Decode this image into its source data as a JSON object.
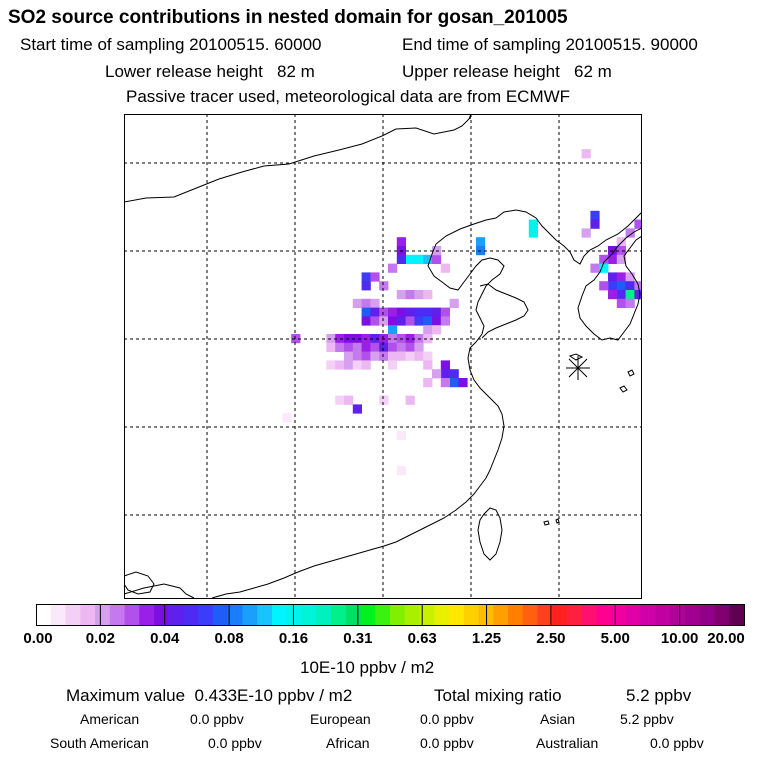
{
  "header": {
    "title": "SO2 source contributions in nested domain for gosan_201005",
    "start_time": "Start time of sampling 20100515. 60000",
    "end_time": "End time of sampling 20100515. 90000",
    "lower_release": "Lower release height   82 m",
    "upper_release": "Upper release height   62 m",
    "tracer_note": "Passive tracer used, meteorological data are from ECMWF"
  },
  "chart_data": {
    "type": "heatmap",
    "title": "SO2 source contributions in nested domain for gosan_201005",
    "colorbar": {
      "ticks": [
        "0.00",
        "0.02",
        "0.04",
        "0.08",
        "0.16",
        "0.31",
        "0.63",
        "1.25",
        "2.50",
        "5.00",
        "10.00",
        "20.00"
      ],
      "unit_label": "10E-10 ppbv / m2",
      "colors": [
        "#ffffff",
        "#fbe8fb",
        "#f4cff6",
        "#edb8f2",
        "#d79ff0",
        "#c47aee",
        "#b250ec",
        "#9a20e8",
        "#7c10e4",
        "#6020ec",
        "#4f2af4",
        "#3c3cfb",
        "#1f5dfb",
        "#1a7dfb",
        "#1aa0fb",
        "#18c4fb",
        "#00f4ff",
        "#00f4ec",
        "#00f4d8",
        "#00f0c0",
        "#00f08a",
        "#00e066",
        "#00f020",
        "#3cf010",
        "#80f000",
        "#a8f000",
        "#c8f000",
        "#e8f000",
        "#ffe800",
        "#ffd000",
        "#ffbc00",
        "#ffa000",
        "#ff8000",
        "#ff6010",
        "#ff4020",
        "#ff2020",
        "#ff2040",
        "#ff1070",
        "#ff0090",
        "#f000a0",
        "#e000a8",
        "#d000a8",
        "#c000a0",
        "#b00098",
        "#a00090",
        "#900088",
        "#800070",
        "#600050"
      ]
    },
    "map": {
      "projection": "lat-lon",
      "grid_lines": "dashed",
      "receptor": "gosan"
    },
    "cells": [
      {
        "col": 52,
        "row": 4,
        "level": 3
      },
      {
        "col": 46,
        "row": 12,
        "level": 17
      },
      {
        "col": 46,
        "row": 13,
        "level": 17
      },
      {
        "col": 53,
        "row": 11,
        "level": 11
      },
      {
        "col": 53,
        "row": 12,
        "level": 9
      },
      {
        "col": 52,
        "row": 13,
        "level": 4
      },
      {
        "col": 40,
        "row": 14,
        "level": 14
      },
      {
        "col": 40,
        "row": 15,
        "level": 13
      },
      {
        "col": 31,
        "row": 14,
        "level": 7
      },
      {
        "col": 31,
        "row": 15,
        "level": 8
      },
      {
        "col": 32,
        "row": 16,
        "level": 16
      },
      {
        "col": 33,
        "row": 16,
        "level": 16
      },
      {
        "col": 34,
        "row": 16,
        "level": 15
      },
      {
        "col": 31,
        "row": 16,
        "level": 10
      },
      {
        "col": 35,
        "row": 16,
        "level": 6
      },
      {
        "col": 35,
        "row": 15,
        "level": 4
      },
      {
        "col": 30,
        "row": 17,
        "level": 5
      },
      {
        "col": 36,
        "row": 17,
        "level": 3
      },
      {
        "col": 27,
        "row": 18,
        "level": 11
      },
      {
        "col": 27,
        "row": 19,
        "level": 10
      },
      {
        "col": 28,
        "row": 18,
        "level": 6
      },
      {
        "col": 29,
        "row": 19,
        "level": 5
      },
      {
        "col": 31,
        "row": 20,
        "level": 4
      },
      {
        "col": 32,
        "row": 20,
        "level": 5
      },
      {
        "col": 33,
        "row": 20,
        "level": 4
      },
      {
        "col": 34,
        "row": 20,
        "level": 3
      },
      {
        "col": 26,
        "row": 21,
        "level": 4
      },
      {
        "col": 27,
        "row": 21,
        "level": 5
      },
      {
        "col": 28,
        "row": 21,
        "level": 4
      },
      {
        "col": 27,
        "row": 22,
        "level": 12
      },
      {
        "col": 28,
        "row": 22,
        "level": 9
      },
      {
        "col": 29,
        "row": 22,
        "level": 6
      },
      {
        "col": 30,
        "row": 22,
        "level": 7
      },
      {
        "col": 31,
        "row": 22,
        "level": 8
      },
      {
        "col": 32,
        "row": 22,
        "level": 9
      },
      {
        "col": 33,
        "row": 22,
        "level": 10
      },
      {
        "col": 34,
        "row": 22,
        "level": 10
      },
      {
        "col": 35,
        "row": 22,
        "level": 9
      },
      {
        "col": 36,
        "row": 22,
        "level": 6
      },
      {
        "col": 37,
        "row": 21,
        "level": 4
      },
      {
        "col": 27,
        "row": 23,
        "level": 8
      },
      {
        "col": 28,
        "row": 23,
        "level": 6
      },
      {
        "col": 29,
        "row": 23,
        "level": 4
      },
      {
        "col": 30,
        "row": 23,
        "level": 8
      },
      {
        "col": 31,
        "row": 23,
        "level": 9
      },
      {
        "col": 32,
        "row": 23,
        "level": 6
      },
      {
        "col": 33,
        "row": 23,
        "level": 11
      },
      {
        "col": 34,
        "row": 23,
        "level": 12
      },
      {
        "col": 35,
        "row": 23,
        "level": 8
      },
      {
        "col": 36,
        "row": 23,
        "level": 5
      },
      {
        "col": 34,
        "row": 24,
        "level": 4
      },
      {
        "col": 35,
        "row": 24,
        "level": 3
      },
      {
        "col": 30,
        "row": 24,
        "level": 14
      },
      {
        "col": 34,
        "row": 25,
        "level": 3
      },
      {
        "col": 19,
        "row": 25,
        "level": 6
      },
      {
        "col": 23,
        "row": 25,
        "level": 4
      },
      {
        "col": 24,
        "row": 25,
        "level": 7
      },
      {
        "col": 25,
        "row": 25,
        "level": 8
      },
      {
        "col": 26,
        "row": 25,
        "level": 8
      },
      {
        "col": 27,
        "row": 25,
        "level": 7
      },
      {
        "col": 28,
        "row": 25,
        "level": 9
      },
      {
        "col": 29,
        "row": 25,
        "level": 7
      },
      {
        "col": 30,
        "row": 25,
        "level": 5
      },
      {
        "col": 31,
        "row": 25,
        "level": 6
      },
      {
        "col": 32,
        "row": 25,
        "level": 7
      },
      {
        "col": 33,
        "row": 25,
        "level": 5
      },
      {
        "col": 34,
        "row": 25,
        "level": 3
      },
      {
        "col": 23,
        "row": 26,
        "level": 3
      },
      {
        "col": 24,
        "row": 26,
        "level": 5
      },
      {
        "col": 25,
        "row": 26,
        "level": 6
      },
      {
        "col": 26,
        "row": 26,
        "level": 5
      },
      {
        "col": 27,
        "row": 26,
        "level": 7
      },
      {
        "col": 28,
        "row": 26,
        "level": 6
      },
      {
        "col": 29,
        "row": 26,
        "level": 9
      },
      {
        "col": 30,
        "row": 26,
        "level": 6
      },
      {
        "col": 31,
        "row": 26,
        "level": 5
      },
      {
        "col": 32,
        "row": 26,
        "level": 6
      },
      {
        "col": 33,
        "row": 26,
        "level": 4
      },
      {
        "col": 25,
        "row": 27,
        "level": 4
      },
      {
        "col": 26,
        "row": 27,
        "level": 5
      },
      {
        "col": 27,
        "row": 27,
        "level": 6
      },
      {
        "col": 28,
        "row": 27,
        "level": 4
      },
      {
        "col": 29,
        "row": 27,
        "level": 5
      },
      {
        "col": 30,
        "row": 27,
        "level": 3
      },
      {
        "col": 31,
        "row": 27,
        "level": 3
      },
      {
        "col": 32,
        "row": 27,
        "level": 2
      },
      {
        "col": 33,
        "row": 27,
        "level": 3
      },
      {
        "col": 34,
        "row": 27,
        "level": 2
      },
      {
        "col": 23,
        "row": 28,
        "level": 2
      },
      {
        "col": 24,
        "row": 28,
        "level": 3
      },
      {
        "col": 25,
        "row": 28,
        "level": 4
      },
      {
        "col": 26,
        "row": 28,
        "level": 2
      },
      {
        "col": 27,
        "row": 28,
        "level": 3
      },
      {
        "col": 30,
        "row": 28,
        "level": 2
      },
      {
        "col": 34,
        "row": 28,
        "level": 3
      },
      {
        "col": 36,
        "row": 28,
        "level": 8
      },
      {
        "col": 36,
        "row": 29,
        "level": 9
      },
      {
        "col": 37,
        "row": 29,
        "level": 10
      },
      {
        "col": 37,
        "row": 30,
        "level": 12
      },
      {
        "col": 38,
        "row": 30,
        "level": 8
      },
      {
        "col": 36,
        "row": 30,
        "level": 5
      },
      {
        "col": 35,
        "row": 29,
        "level": 4
      },
      {
        "col": 34,
        "row": 30,
        "level": 3
      },
      {
        "col": 24,
        "row": 32,
        "level": 2
      },
      {
        "col": 25,
        "row": 32,
        "level": 3
      },
      {
        "col": 26,
        "row": 33,
        "level": 9
      },
      {
        "col": 29,
        "row": 32,
        "level": 2
      },
      {
        "col": 32,
        "row": 32,
        "level": 3
      },
      {
        "col": 18,
        "row": 34,
        "level": 1
      },
      {
        "col": 31,
        "row": 36,
        "level": 1
      },
      {
        "col": 31,
        "row": 40,
        "level": 1
      },
      {
        "col": 59,
        "row": 11,
        "level": 14
      },
      {
        "col": 58,
        "row": 12,
        "level": 6
      },
      {
        "col": 57,
        "row": 13,
        "level": 5
      },
      {
        "col": 56,
        "row": 14,
        "level": 3
      },
      {
        "col": 55,
        "row": 15,
        "level": 8
      },
      {
        "col": 56,
        "row": 15,
        "level": 6
      },
      {
        "col": 55,
        "row": 16,
        "level": 7
      },
      {
        "col": 56,
        "row": 16,
        "level": 4
      },
      {
        "col": 54,
        "row": 16,
        "level": 6
      },
      {
        "col": 54,
        "row": 17,
        "level": 16
      },
      {
        "col": 53,
        "row": 17,
        "level": 5
      },
      {
        "col": 55,
        "row": 18,
        "level": 9
      },
      {
        "col": 56,
        "row": 18,
        "level": 7
      },
      {
        "col": 57,
        "row": 18,
        "level": 4
      },
      {
        "col": 55,
        "row": 19,
        "level": 11
      },
      {
        "col": 56,
        "row": 19,
        "level": 12
      },
      {
        "col": 57,
        "row": 19,
        "level": 10
      },
      {
        "col": 58,
        "row": 19,
        "level": 5
      },
      {
        "col": 54,
        "row": 19,
        "level": 6
      },
      {
        "col": 56,
        "row": 20,
        "level": 10
      },
      {
        "col": 57,
        "row": 20,
        "level": 20
      },
      {
        "col": 58,
        "row": 20,
        "level": 9
      },
      {
        "col": 55,
        "row": 20,
        "level": 7
      },
      {
        "col": 56,
        "row": 21,
        "level": 6
      },
      {
        "col": 57,
        "row": 21,
        "level": 5
      }
    ]
  },
  "summary": {
    "max_value": "Maximum value  0.433E-10 ppbv / m2",
    "total_label": "Total mixing ratio",
    "total_value": "5.2 ppbv",
    "regions": [
      {
        "name": "American",
        "value": "0.0 ppbv"
      },
      {
        "name": "European",
        "value": "0.0 ppbv"
      },
      {
        "name": "Asian",
        "value": "5.2 ppbv"
      },
      {
        "name": "South American",
        "value": "0.0 ppbv"
      },
      {
        "name": "African",
        "value": "0.0 ppbv"
      },
      {
        "name": "Australian",
        "value": "0.0 ppbv"
      }
    ]
  }
}
